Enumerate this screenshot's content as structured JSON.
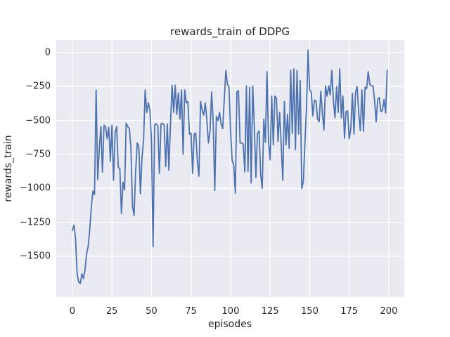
{
  "figure": {
    "background_color": "#ffffff"
  },
  "chart_data": {
    "type": "line",
    "title": "rewards_train of DDPG",
    "xlabel": "episodes",
    "ylabel": "rewards_train",
    "legend": false,
    "grid": true,
    "plot_bg_color": "#eaeaf2",
    "grid_color": "#ffffff",
    "text_color": "#262626",
    "line_color": "#4c72b0",
    "xlim": [
      -10.2,
      209.8
    ],
    "ylim": [
      -1800,
      93
    ],
    "x_ticks": [
      0,
      25,
      50,
      75,
      100,
      125,
      150,
      175,
      200
    ],
    "x_tick_labels": [
      "0",
      "25",
      "50",
      "75",
      "100",
      "125",
      "150",
      "175",
      "200"
    ],
    "y_ticks": [
      0,
      -250,
      -500,
      -750,
      -1000,
      -1250,
      -1500
    ],
    "y_tick_labels": [
      "0",
      "−250",
      "−500",
      "−750",
      "−1000",
      "−1250",
      "−1500"
    ],
    "series": [
      {
        "name": "rewards_train",
        "x_start": 0,
        "x_step": 1,
        "values": [
          -1310,
          -1270,
          -1370,
          -1630,
          -1690,
          -1700,
          -1630,
          -1665,
          -1600,
          -1480,
          -1425,
          -1300,
          -1130,
          -1020,
          -1045,
          -275,
          -935,
          -710,
          -545,
          -880,
          -535,
          -545,
          -635,
          -550,
          -800,
          -535,
          -940,
          -590,
          -545,
          -845,
          -855,
          -1185,
          -955,
          -1010,
          -520,
          -545,
          -560,
          -700,
          -1130,
          -1200,
          -870,
          -665,
          -690,
          -1040,
          -775,
          -645,
          -275,
          -440,
          -370,
          -420,
          -650,
          -1430,
          -530,
          -525,
          -540,
          -890,
          -525,
          -520,
          -535,
          -840,
          -525,
          -865,
          -525,
          -240,
          -440,
          -240,
          -455,
          -295,
          -490,
          -275,
          -750,
          -275,
          -370,
          -360,
          -600,
          -592,
          -890,
          -600,
          -592,
          -800,
          -910,
          -360,
          -425,
          -460,
          -370,
          -495,
          -665,
          -580,
          -290,
          -510,
          -1015,
          -470,
          -500,
          -440,
          -525,
          -560,
          -345,
          -130,
          -235,
          -250,
          -585,
          -795,
          -830,
          -1035,
          -290,
          -280,
          -665,
          -665,
          -675,
          -880,
          -245,
          -875,
          -255,
          -960,
          -245,
          -545,
          -920,
          -595,
          -577,
          -895,
          -1000,
          -490,
          -660,
          -140,
          -660,
          -790,
          -320,
          -680,
          -320,
          -335,
          -655,
          -440,
          -680,
          -940,
          -360,
          -680,
          -455,
          -705,
          -130,
          -595,
          -120,
          -715,
          -130,
          -600,
          -205,
          -1000,
          -950,
          -660,
          -400,
          20,
          -275,
          -290,
          -465,
          -350,
          -355,
          -490,
          -510,
          -285,
          -440,
          -570,
          -245,
          -320,
          -245,
          -310,
          -130,
          -355,
          -480,
          -250,
          -440,
          -120,
          -480,
          -320,
          -630,
          -435,
          -430,
          -635,
          -560,
          -300,
          -600,
          -290,
          -250,
          -445,
          -575,
          -275,
          -580,
          -255,
          -265,
          -140,
          -235,
          -245,
          -245,
          -350,
          -510,
          -345,
          -330,
          -435,
          -425,
          -345,
          -445,
          -130
        ]
      }
    ]
  }
}
